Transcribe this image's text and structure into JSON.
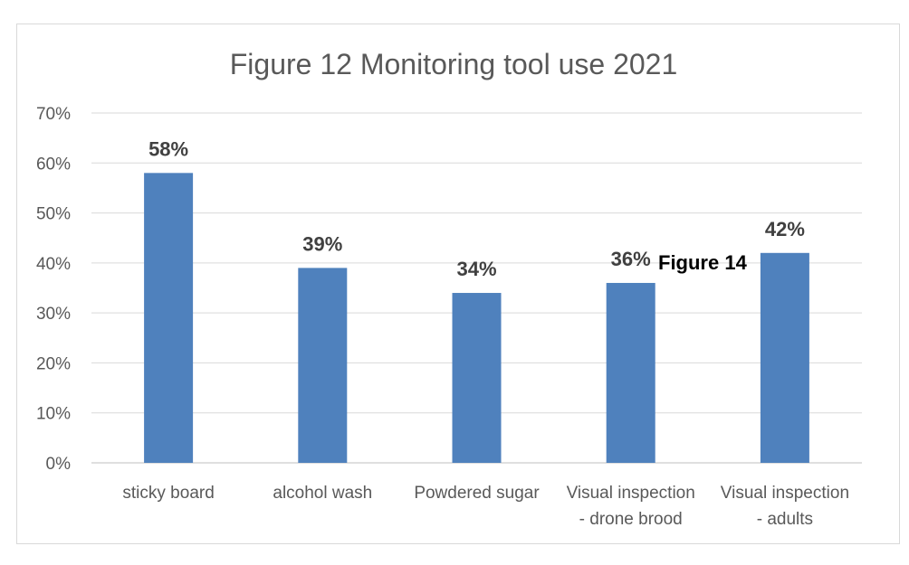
{
  "chart_data": {
    "type": "bar",
    "title": "Figure 12 Monitoring tool use 2021",
    "categories": [
      [
        "sticky board"
      ],
      [
        "alcohol wash"
      ],
      [
        "Powdered sugar"
      ],
      [
        "Visual inspection",
        "- drone brood"
      ],
      [
        "Visual inspection",
        "- adults"
      ]
    ],
    "values": [
      58,
      39,
      34,
      36,
      42
    ],
    "data_labels": [
      "58%",
      "39%",
      "34%",
      "36%",
      "42%"
    ],
    "ylim": [
      0,
      70
    ],
    "yticks": [
      0,
      10,
      20,
      30,
      40,
      50,
      60,
      70
    ],
    "ytick_labels": [
      "0%",
      "10%",
      "20%",
      "30%",
      "40%",
      "50%",
      "60%",
      "70%"
    ],
    "gridlines": true,
    "legend": "none",
    "bar_color": "#4f81bd",
    "annotation": "Figure 14"
  }
}
